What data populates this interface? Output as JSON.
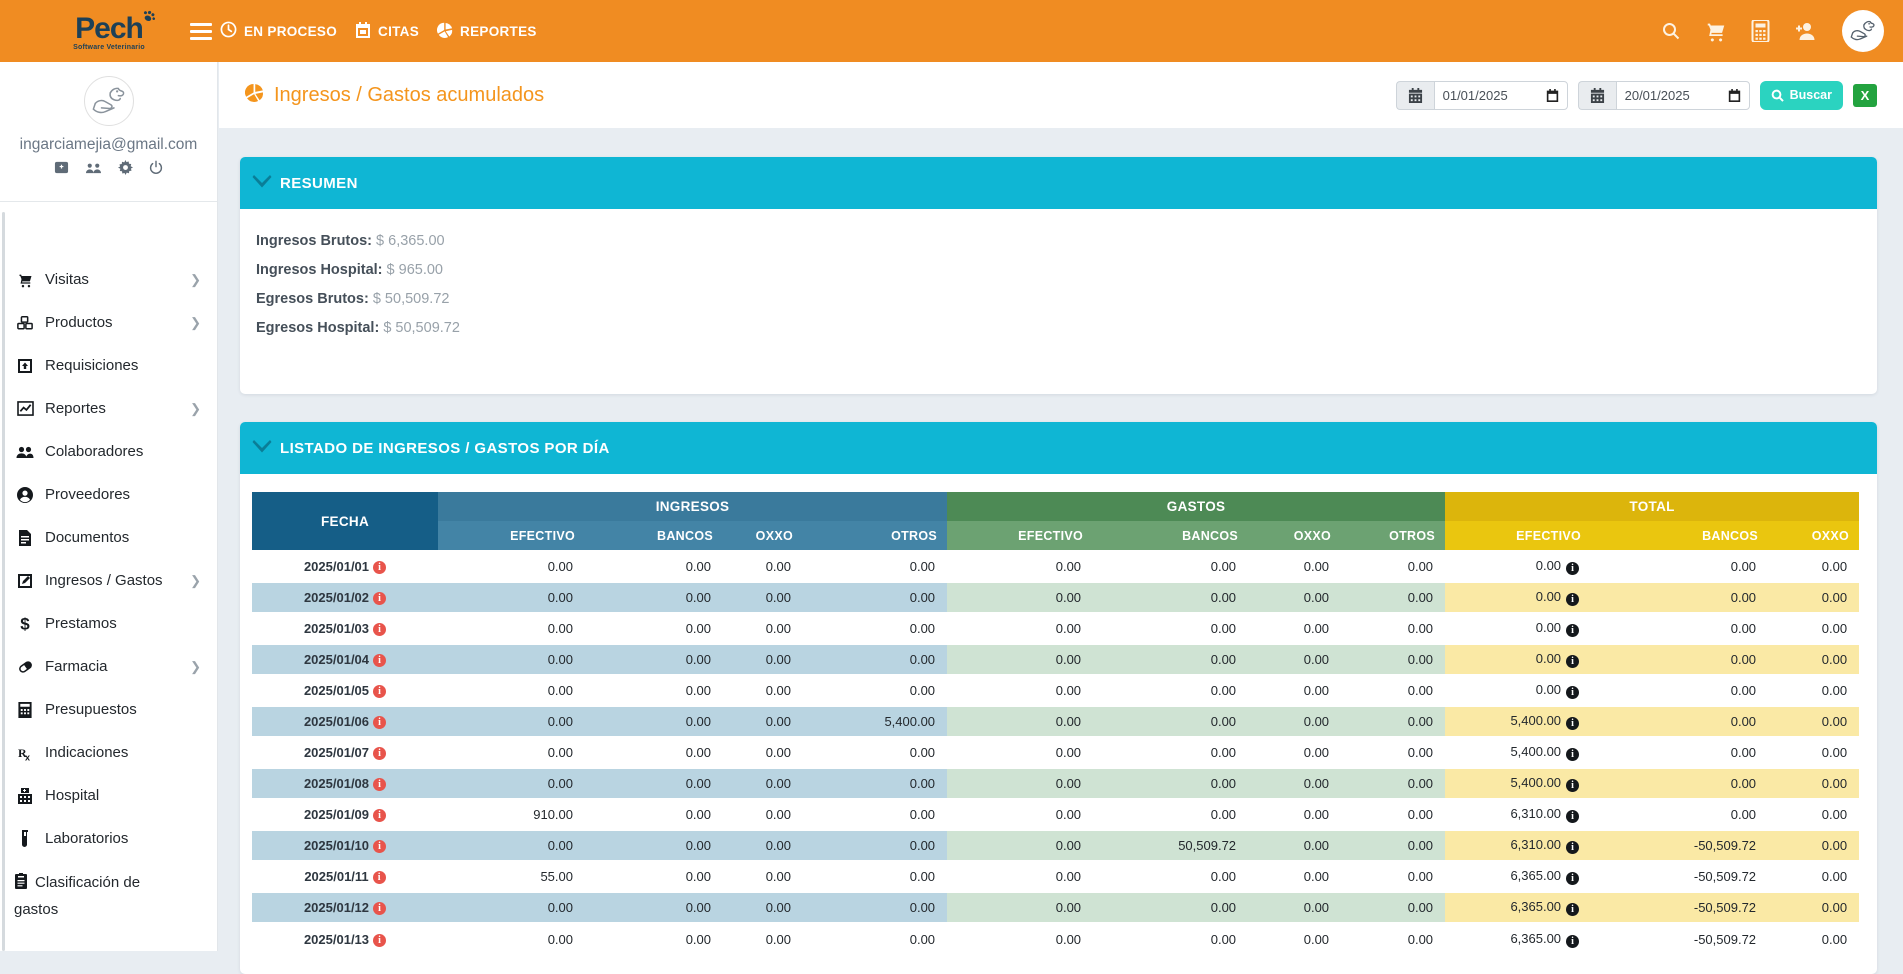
{
  "navbar": {
    "logo": "Pech",
    "logo_sub": "Software Veterinario",
    "items": [
      {
        "label": "EN PROCESO",
        "icon": "clock-icon"
      },
      {
        "label": "CITAS",
        "icon": "calendar-icon"
      },
      {
        "label": "REPORTES",
        "icon": "pie-chart-icon"
      }
    ],
    "right_icons": [
      "search-icon",
      "cart-icon",
      "calculator-icon",
      "add-person-icon"
    ],
    "color": "#f08c22"
  },
  "sidebar": {
    "email": "ingarciamejia@gmail.com",
    "profile_icons": [
      "badge-icon",
      "group-icon",
      "gear-icon",
      "power-icon"
    ],
    "items": [
      {
        "label": "Visitas",
        "icon": "cart-icon",
        "chevron": true
      },
      {
        "label": "Productos",
        "icon": "boxes-icon",
        "chevron": true
      },
      {
        "label": "Requisiciones",
        "icon": "box-arrow-icon",
        "chevron": false
      },
      {
        "label": "Reportes",
        "icon": "chart-icon",
        "chevron": true
      },
      {
        "label": "Colaboradores",
        "icon": "people-icon",
        "chevron": false
      },
      {
        "label": "Proveedores",
        "icon": "person-circle-icon",
        "chevron": false
      },
      {
        "label": "Documentos",
        "icon": "document-icon",
        "chevron": false
      },
      {
        "label": "Ingresos / Gastos",
        "icon": "note-icon",
        "chevron": true
      },
      {
        "label": "Prestamos",
        "icon": "dollar-icon",
        "chevron": false
      },
      {
        "label": "Farmacia",
        "icon": "pill-icon",
        "chevron": true
      },
      {
        "label": "Presupuestos",
        "icon": "calculator-icon",
        "chevron": false
      },
      {
        "label": "Indicaciones",
        "icon": "rx-icon",
        "chevron": false
      },
      {
        "label": "Hospital",
        "icon": "hospital-icon",
        "chevron": false
      },
      {
        "label": "Laboratorios",
        "icon": "testtube-icon",
        "chevron": false
      },
      {
        "label": "Clasificación de gastos",
        "icon": "clipboard-icon",
        "chevron": false
      }
    ]
  },
  "header": {
    "title": "Ingresos / Gastos acumulados",
    "date_from": "01/01/2025",
    "date_to": "20/01/2025",
    "search_label": "Buscar",
    "excel_label": "X"
  },
  "resumen": {
    "title": "RESUMEN",
    "lines": [
      {
        "label": "Ingresos Brutos:",
        "value": "$ 6,365.00"
      },
      {
        "label": "Ingresos Hospital:",
        "value": "$ 965.00"
      },
      {
        "label": "Egresos Brutos:",
        "value": "$ 50,509.72"
      },
      {
        "label": "Egresos Hospital:",
        "value": "$ 50,509.72"
      }
    ]
  },
  "listado": {
    "title": "LISTADO DE INGRESOS / GASTOS POR DÍA",
    "col_fecha": "FECHA",
    "groups": [
      {
        "label": "INGRESOS",
        "cols": [
          "EFECTIVO",
          "BANCOS",
          "OXXO",
          "OTROS"
        ]
      },
      {
        "label": "GASTOS",
        "cols": [
          "EFECTIVO",
          "BANCOS",
          "OXXO",
          "OTROS"
        ]
      },
      {
        "label": "TOTAL",
        "cols": [
          "EFECTIVO",
          "BANCOS",
          "OXXO"
        ]
      }
    ],
    "rows": [
      {
        "fecha": "2025/01/01",
        "ingresos": [
          "0.00",
          "0.00",
          "0.00",
          "0.00"
        ],
        "gastos": [
          "0.00",
          "0.00",
          "0.00",
          "0.00"
        ],
        "total": [
          "0.00",
          "0.00",
          "0.00"
        ]
      },
      {
        "fecha": "2025/01/02",
        "ingresos": [
          "0.00",
          "0.00",
          "0.00",
          "0.00"
        ],
        "gastos": [
          "0.00",
          "0.00",
          "0.00",
          "0.00"
        ],
        "total": [
          "0.00",
          "0.00",
          "0.00"
        ]
      },
      {
        "fecha": "2025/01/03",
        "ingresos": [
          "0.00",
          "0.00",
          "0.00",
          "0.00"
        ],
        "gastos": [
          "0.00",
          "0.00",
          "0.00",
          "0.00"
        ],
        "total": [
          "0.00",
          "0.00",
          "0.00"
        ]
      },
      {
        "fecha": "2025/01/04",
        "ingresos": [
          "0.00",
          "0.00",
          "0.00",
          "0.00"
        ],
        "gastos": [
          "0.00",
          "0.00",
          "0.00",
          "0.00"
        ],
        "total": [
          "0.00",
          "0.00",
          "0.00"
        ]
      },
      {
        "fecha": "2025/01/05",
        "ingresos": [
          "0.00",
          "0.00",
          "0.00",
          "0.00"
        ],
        "gastos": [
          "0.00",
          "0.00",
          "0.00",
          "0.00"
        ],
        "total": [
          "0.00",
          "0.00",
          "0.00"
        ]
      },
      {
        "fecha": "2025/01/06",
        "ingresos": [
          "0.00",
          "0.00",
          "0.00",
          "5,400.00"
        ],
        "gastos": [
          "0.00",
          "0.00",
          "0.00",
          "0.00"
        ],
        "total": [
          "5,400.00",
          "0.00",
          "0.00"
        ]
      },
      {
        "fecha": "2025/01/07",
        "ingresos": [
          "0.00",
          "0.00",
          "0.00",
          "0.00"
        ],
        "gastos": [
          "0.00",
          "0.00",
          "0.00",
          "0.00"
        ],
        "total": [
          "5,400.00",
          "0.00",
          "0.00"
        ]
      },
      {
        "fecha": "2025/01/08",
        "ingresos": [
          "0.00",
          "0.00",
          "0.00",
          "0.00"
        ],
        "gastos": [
          "0.00",
          "0.00",
          "0.00",
          "0.00"
        ],
        "total": [
          "5,400.00",
          "0.00",
          "0.00"
        ]
      },
      {
        "fecha": "2025/01/09",
        "ingresos": [
          "910.00",
          "0.00",
          "0.00",
          "0.00"
        ],
        "gastos": [
          "0.00",
          "0.00",
          "0.00",
          "0.00"
        ],
        "total": [
          "6,310.00",
          "0.00",
          "0.00"
        ]
      },
      {
        "fecha": "2025/01/10",
        "ingresos": [
          "0.00",
          "0.00",
          "0.00",
          "0.00"
        ],
        "gastos": [
          "0.00",
          "50,509.72",
          "0.00",
          "0.00"
        ],
        "total": [
          "6,310.00",
          "-50,509.72",
          "0.00"
        ]
      },
      {
        "fecha": "2025/01/11",
        "ingresos": [
          "55.00",
          "0.00",
          "0.00",
          "0.00"
        ],
        "gastos": [
          "0.00",
          "0.00",
          "0.00",
          "0.00"
        ],
        "total": [
          "6,365.00",
          "-50,509.72",
          "0.00"
        ]
      },
      {
        "fecha": "2025/01/12",
        "ingresos": [
          "0.00",
          "0.00",
          "0.00",
          "0.00"
        ],
        "gastos": [
          "0.00",
          "0.00",
          "0.00",
          "0.00"
        ],
        "total": [
          "6,365.00",
          "-50,509.72",
          "0.00"
        ]
      },
      {
        "fecha": "2025/01/13",
        "ingresos": [
          "0.00",
          "0.00",
          "0.00",
          "0.00"
        ],
        "gastos": [
          "0.00",
          "0.00",
          "0.00",
          "0.00"
        ],
        "total": [
          "6,365.00",
          "-50,509.72",
          "0.00"
        ]
      }
    ]
  }
}
